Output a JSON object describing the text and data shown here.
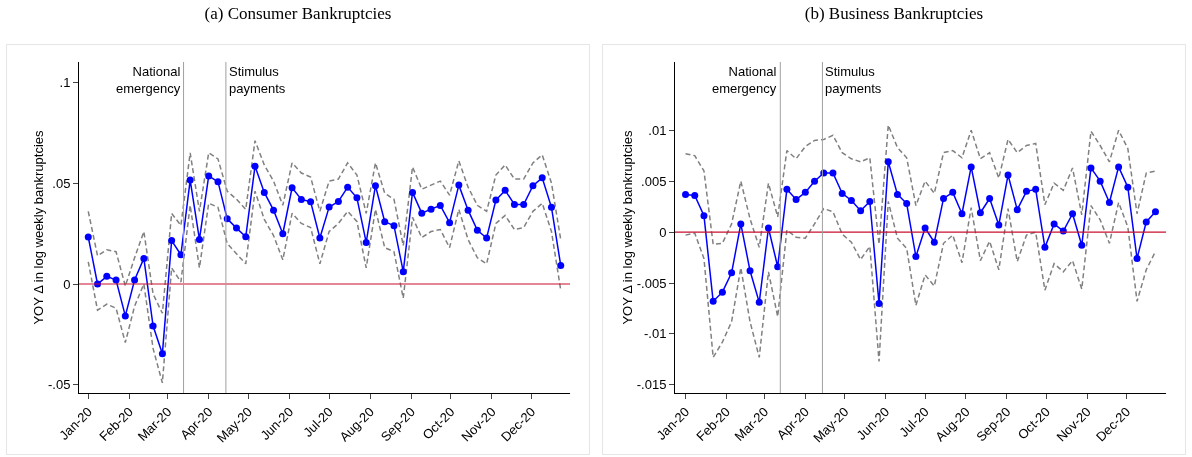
{
  "chart_data": [
    {
      "type": "line",
      "title": "(a) Consumer Bankruptcies",
      "ylabel": "YOY Δ in log weekly bankruptcies",
      "x": [
        "2020-01-01",
        "2020-01-08",
        "2020-01-15",
        "2020-01-22",
        "2020-01-29",
        "2020-02-05",
        "2020-02-12",
        "2020-02-19",
        "2020-02-26",
        "2020-03-04",
        "2020-03-11",
        "2020-03-18",
        "2020-03-25",
        "2020-04-01",
        "2020-04-08",
        "2020-04-15",
        "2020-04-22",
        "2020-04-29",
        "2020-05-06",
        "2020-05-13",
        "2020-05-20",
        "2020-05-27",
        "2020-06-03",
        "2020-06-10",
        "2020-06-17",
        "2020-06-24",
        "2020-07-01",
        "2020-07-08",
        "2020-07-15",
        "2020-07-22",
        "2020-07-29",
        "2020-08-05",
        "2020-08-12",
        "2020-08-19",
        "2020-08-26",
        "2020-09-02",
        "2020-09-09",
        "2020-09-16",
        "2020-09-23",
        "2020-09-30",
        "2020-10-07",
        "2020-10-14",
        "2020-10-21",
        "2020-10-28",
        "2020-11-04",
        "2020-11-11",
        "2020-11-18",
        "2020-11-25",
        "2020-12-02",
        "2020-12-09",
        "2020-12-16",
        "2020-12-23"
      ],
      "series": [
        {
          "color": "#808080",
          "line_style": "dashed",
          "marker": "none",
          "values": [
            0.036,
            0.014,
            0.017,
            0.016,
            -0.001,
            0.013,
            0.026,
            -0.005,
            -0.0145,
            0.035,
            0.029,
            0.065,
            0.036,
            0.065,
            0.062,
            0.046,
            0.042,
            0.037,
            0.071,
            0.059,
            0.051,
            0.039,
            0.06,
            0.055,
            0.053,
            0.036,
            0.051,
            0.052,
            0.06,
            0.054,
            0.035,
            0.06,
            0.045,
            0.042,
            0.019,
            0.058,
            0.047,
            0.049,
            0.051,
            0.044,
            0.061,
            0.048,
            0.039,
            0.036,
            0.054,
            0.059,
            0.052,
            0.052,
            0.06,
            0.064,
            0.05,
            0.022
          ]
        },
        {
          "color": "#808080",
          "line_style": "dashed",
          "marker": "none",
          "values": [
            0.011,
            -0.013,
            -0.01,
            -0.012,
            -0.029,
            -0.011,
            0,
            -0.032,
            -0.049,
            0.008,
            0.001,
            0.039,
            0.008,
            0.04,
            0.038,
            0.02,
            0.015,
            0.01,
            0.046,
            0.032,
            0.024,
            0.012,
            0.035,
            0.03,
            0.028,
            0.01,
            0.026,
            0.03,
            0.036,
            0.031,
            0.008,
            0.037,
            0.018,
            0.016,
            -0.007,
            0.033,
            0.023,
            0.026,
            0.027,
            0.018,
            0.037,
            0.022,
            0.013,
            0.01,
            0.03,
            0.034,
            0.027,
            0.028,
            0.036,
            0.04,
            0.026,
            -0.003
          ]
        },
        {
          "color": "#0000ff",
          "values": [
            0.0233,
            0,
            0.0038,
            0.002,
            -0.0158,
            0.002,
            0.0127,
            -0.0208,
            -0.0345,
            0.0215,
            0.0145,
            0.0515,
            0.0221,
            0.0535,
            0.0507,
            0.0323,
            0.0277,
            0.0234,
            0.0584,
            0.0454,
            0.0366,
            0.0249,
            0.0477,
            0.0419,
            0.0408,
            0.0228,
            0.0381,
            0.0409,
            0.048,
            0.0427,
            0.0206,
            0.0487,
            0.0309,
            0.0289,
            0.0061,
            0.0454,
            0.0351,
            0.0371,
            0.0389,
            0.0304,
            0.049,
            0.0366,
            0.0266,
            0.0228,
            0.0416,
            0.0464,
            0.0394,
            0.0394,
            0.0487,
            0.0526,
            0.038,
            0.0092
          ]
        }
      ],
      "xlim": [
        "2019-12-25",
        "2020-12-30"
      ],
      "xticks": [
        {
          "value": "2020-01-01",
          "label": "Jan-20"
        },
        {
          "value": "2020-02-01",
          "label": "Feb-20"
        },
        {
          "value": "2020-03-01",
          "label": "Mar-20"
        },
        {
          "value": "2020-04-01",
          "label": "Apr-20"
        },
        {
          "value": "2020-05-01",
          "label": "May-20"
        },
        {
          "value": "2020-06-01",
          "label": "Jun-20"
        },
        {
          "value": "2020-07-01",
          "label": "Jul-20"
        },
        {
          "value": "2020-08-01",
          "label": "Aug-20"
        },
        {
          "value": "2020-09-01",
          "label": "Sep-20"
        },
        {
          "value": "2020-10-01",
          "label": "Oct-20"
        },
        {
          "value": "2020-11-01",
          "label": "Nov-20"
        },
        {
          "value": "2020-12-01",
          "label": "Dec-20"
        }
      ],
      "ylim": [
        -0.054,
        0.11
      ],
      "yticks": [
        {
          "value": -0.05,
          "label": "-.05"
        },
        0,
        {
          "value": 0.05,
          "label": ".05"
        },
        {
          "value": 0.1,
          "label": ".1"
        }
      ],
      "ref_lines": [
        {
          "axis": "y",
          "value": 0,
          "color": "#c8102e"
        },
        {
          "axis": "x",
          "value": "2020-03-13",
          "label": "National\nemergency",
          "color": "#a0a0a0"
        },
        {
          "axis": "x",
          "value": "2020-04-14",
          "label": "Stimulus\npayments",
          "color": "#a0a0a0"
        }
      ],
      "marker": "circle",
      "line_style": "solid"
    },
    {
      "type": "line",
      "title": "(b) Business Bankruptcies",
      "ylabel": "YOY Δ in log weekly bankruptcies",
      "x": [
        "2020-01-01",
        "2020-01-08",
        "2020-01-15",
        "2020-01-22",
        "2020-01-29",
        "2020-02-05",
        "2020-02-12",
        "2020-02-19",
        "2020-02-26",
        "2020-03-04",
        "2020-03-11",
        "2020-03-18",
        "2020-03-25",
        "2020-04-01",
        "2020-04-08",
        "2020-04-15",
        "2020-04-22",
        "2020-04-29",
        "2020-05-06",
        "2020-05-13",
        "2020-05-20",
        "2020-05-27",
        "2020-06-03",
        "2020-06-10",
        "2020-06-17",
        "2020-06-24",
        "2020-07-01",
        "2020-07-08",
        "2020-07-15",
        "2020-07-22",
        "2020-07-29",
        "2020-08-05",
        "2020-08-12",
        "2020-08-19",
        "2020-08-26",
        "2020-09-02",
        "2020-09-09",
        "2020-09-16",
        "2020-09-23",
        "2020-09-30",
        "2020-10-07",
        "2020-10-14",
        "2020-10-21",
        "2020-10-28",
        "2020-11-04",
        "2020-11-11",
        "2020-11-18",
        "2020-11-25",
        "2020-12-02",
        "2020-12-09",
        "2020-12-16",
        "2020-12-23"
      ],
      "series": [
        {
          "color": "#808080",
          "line_style": "dashed",
          "marker": "none",
          "values": [
            0.0077,
            0.0075,
            0.006,
            -0.0012,
            -0.0011,
            0.0008,
            0.005,
            0.0013,
            -0.0015,
            0.0048,
            0.0015,
            0.008,
            0.0072,
            0.0084,
            0.009,
            0.0091,
            0.0095,
            0.0078,
            0.0072,
            0.0069,
            0.0073,
            -0.0012,
            0.0105,
            0.0083,
            0.0073,
            0.0026,
            0.005,
            0.0038,
            0.0078,
            0.008,
            0.0073,
            0.01,
            0.0072,
            0.0078,
            0.0053,
            0.0091,
            0.0078,
            0.0085,
            0.0087,
            0.0027,
            0.0048,
            0.0041,
            0.0063,
            0.0017,
            0.0099,
            0.0085,
            0.0069,
            0.01,
            0.0082,
            0.0018,
            0.0058,
            0.006
          ]
        },
        {
          "color": "#808080",
          "line_style": "dashed",
          "marker": "none",
          "values": [
            -0.0003,
            -0.0001,
            -0.0026,
            -0.0123,
            -0.0108,
            -0.0088,
            -0.0035,
            -0.0088,
            -0.0123,
            -0.0039,
            -0.0083,
            0.0002,
            -0.0005,
            -0.0006,
            0.0008,
            0.0023,
            0.002,
            -0.0002,
            -0.001,
            -0.0027,
            -0.0014,
            -0.0127,
            0.003,
            -0.0006,
            -0.0016,
            -0.0072,
            -0.0042,
            -0.0053,
            -0.0011,
            -0.0003,
            -0.003,
            0.0024,
            -0.0028,
            -0.0009,
            -0.0037,
            0.0023,
            -0.0029,
            -0.0003,
            0,
            -0.0057,
            -0.0031,
            -0.0039,
            -0.0028,
            -0.0056,
            0.0026,
            0.0012,
            -0.0011,
            0.0029,
            0.0005,
            -0.0068,
            -0.0037,
            -0.0019
          ]
        },
        {
          "color": "#0000ff",
          "values": [
            0.0037,
            0.0036,
            0.0016,
            -0.0068,
            -0.0059,
            -0.004,
            0.0008,
            -0.0038,
            -0.0069,
            0.0004,
            -0.0034,
            0.0042,
            0.0032,
            0.0039,
            0.005,
            0.0058,
            0.0058,
            0.0038,
            0.0031,
            0.0021,
            0.003,
            -0.007,
            0.0069,
            0.0037,
            0.0028,
            -0.0024,
            0.0004,
            -0.001,
            0.0033,
            0.0039,
            0.0018,
            0.0064,
            0.0019,
            0.0033,
            0.0007,
            0.0056,
            0.0022,
            0.004,
            0.0042,
            -0.0015,
            0.0008,
            0.0001,
            0.0018,
            -0.0013,
            0.0063,
            0.005,
            0.0029,
            0.0064,
            0.0044,
            -0.0026,
            0.001,
            0.002
          ]
        }
      ],
      "xlim": [
        "2019-12-24",
        "2020-12-31"
      ],
      "xticks": [
        {
          "value": "2020-01-01",
          "label": "Jan-20"
        },
        {
          "value": "2020-02-01",
          "label": "Feb-20"
        },
        {
          "value": "2020-03-01",
          "label": "Mar-20"
        },
        {
          "value": "2020-04-01",
          "label": "Apr-20"
        },
        {
          "value": "2020-05-01",
          "label": "May-20"
        },
        {
          "value": "2020-06-01",
          "label": "Jun-20"
        },
        {
          "value": "2020-07-01",
          "label": "Jul-20"
        },
        {
          "value": "2020-08-01",
          "label": "Aug-20"
        },
        {
          "value": "2020-09-01",
          "label": "Sep-20"
        },
        {
          "value": "2020-10-01",
          "label": "Oct-20"
        },
        {
          "value": "2020-11-01",
          "label": "Nov-20"
        },
        {
          "value": "2020-12-01",
          "label": "Dec-20"
        }
      ],
      "ylim": [
        -0.0158,
        0.0167
      ],
      "yticks": [
        {
          "value": -0.015,
          "label": "-.015"
        },
        {
          "value": -0.01,
          "label": "-.01"
        },
        {
          "value": -0.005,
          "label": "-.005"
        },
        0,
        {
          "value": 0.005,
          "label": ".005"
        },
        {
          "value": 0.01,
          "label": ".01"
        }
      ],
      "ref_lines": [
        {
          "axis": "y",
          "value": 0,
          "color": "#c8102e"
        },
        {
          "axis": "x",
          "value": "2020-03-13",
          "label": "National\nemergency",
          "color": "#a0a0a0"
        },
        {
          "axis": "x",
          "value": "2020-04-14",
          "label": "Stimulus\npayments",
          "color": "#a0a0a0"
        }
      ],
      "marker": "circle",
      "line_style": "solid"
    }
  ]
}
